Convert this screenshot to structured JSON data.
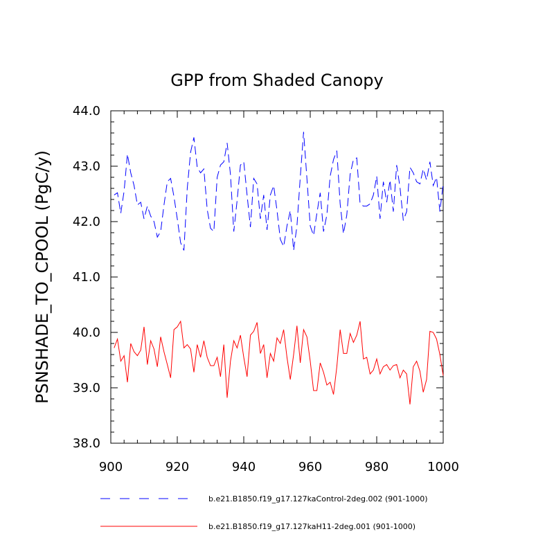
{
  "chart_data": {
    "type": "line",
    "title": "GPP from Shaded Canopy",
    "xlabel": "",
    "ylabel": "PSNSHADE_TO_CPOOL  (PgC/y)",
    "xlim": [
      900,
      1000
    ],
    "ylim": [
      38.0,
      44.0
    ],
    "x_ticks": [
      900,
      920,
      940,
      960,
      980,
      1000
    ],
    "x_tick_labels": [
      "900",
      "920",
      "940",
      "960",
      "980",
      "1000"
    ],
    "y_ticks": [
      38.0,
      39.0,
      40.0,
      41.0,
      42.0,
      43.0,
      44.0
    ],
    "y_tick_labels": [
      "38.0",
      "39.0",
      "40.0",
      "41.0",
      "42.0",
      "43.0",
      "44.0"
    ],
    "x_start": 901,
    "series": [
      {
        "name": "b.e21.B1850.f19_g17.127kaControl-2deg.002 (901-1000)",
        "color": "#0000ff",
        "dash": "dashed",
        "values": [
          42.48,
          42.52,
          42.15,
          42.55,
          43.22,
          42.88,
          42.65,
          42.3,
          42.35,
          42.05,
          42.28,
          42.1,
          42.0,
          41.72,
          41.82,
          42.3,
          42.72,
          42.78,
          42.45,
          42.05,
          41.62,
          41.48,
          42.6,
          43.25,
          43.52,
          42.98,
          42.88,
          42.95,
          42.22,
          41.88,
          41.82,
          42.8,
          43.02,
          43.08,
          43.42,
          42.85,
          41.82,
          42.38,
          43.02,
          43.08,
          42.48,
          41.9,
          42.78,
          42.68,
          42.05,
          42.48,
          41.85,
          42.48,
          42.65,
          42.2,
          41.68,
          41.55,
          41.92,
          42.2,
          41.48,
          41.92,
          42.8,
          43.62,
          42.78,
          41.92,
          41.75,
          42.15,
          42.52,
          41.82,
          42.12,
          42.82,
          43.12,
          43.28,
          42.32,
          41.78,
          42.12,
          42.85,
          43.12,
          43.15,
          42.32,
          42.28,
          42.28,
          42.32,
          42.48,
          42.82,
          42.05,
          42.72,
          42.35,
          42.75,
          42.18,
          43.02,
          42.62,
          42.02,
          42.18,
          42.98,
          42.88,
          42.72,
          42.68,
          42.95,
          42.75,
          43.08,
          42.65,
          42.8,
          42.18,
          42.68
        ]
      },
      {
        "name": "b.e21.B1850.f19_g17.127kaH11-2deg.001 (901-1000)",
        "color": "#ff0000",
        "dash": "solid",
        "values": [
          39.72,
          39.88,
          39.48,
          39.58,
          39.1,
          39.8,
          39.65,
          39.58,
          39.68,
          40.1,
          39.42,
          39.85,
          39.7,
          39.38,
          39.92,
          39.65,
          39.42,
          39.18,
          40.05,
          40.1,
          40.2,
          39.72,
          39.78,
          39.7,
          39.28,
          39.78,
          39.55,
          39.85,
          39.55,
          39.4,
          39.4,
          39.55,
          39.2,
          39.78,
          38.82,
          39.48,
          39.85,
          39.72,
          39.95,
          39.55,
          39.2,
          39.95,
          40.02,
          40.18,
          39.62,
          39.78,
          39.18,
          39.62,
          39.48,
          39.9,
          39.8,
          40.05,
          39.55,
          39.15,
          39.6,
          40.12,
          39.45,
          40.05,
          39.92,
          39.48,
          38.95,
          38.95,
          39.45,
          39.28,
          39.05,
          39.1,
          38.88,
          39.38,
          40.05,
          39.62,
          39.62,
          39.98,
          39.82,
          39.95,
          40.2,
          39.52,
          39.55,
          39.25,
          39.32,
          39.52,
          39.25,
          39.38,
          39.42,
          39.32,
          39.4,
          39.42,
          39.18,
          39.32,
          39.25,
          38.7,
          39.38,
          39.48,
          39.3,
          38.92,
          39.15,
          40.02,
          40.0,
          39.88,
          39.6,
          39.22
        ]
      }
    ],
    "legend_position": "bottom"
  }
}
